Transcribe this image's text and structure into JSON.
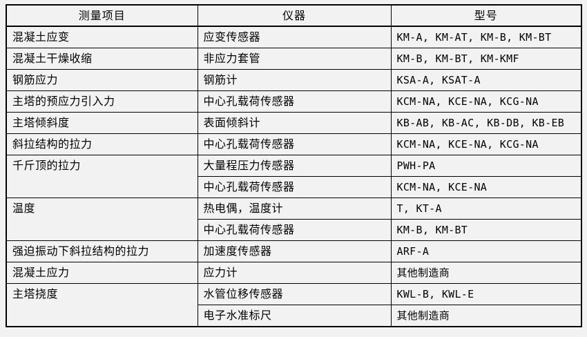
{
  "page": {
    "background_color": "#f2f2f2",
    "border_color": "#000000",
    "text_color": "#000000"
  },
  "table": {
    "headers": {
      "item": "测量项目",
      "instrument": "仪器",
      "model": "型号"
    },
    "rows": [
      {
        "item": "混凝土应变",
        "instrument": "应变传感器",
        "model": "KM-A, KM-AT, KM-B, KM-BT"
      },
      {
        "item": "混凝土干燥收缩",
        "instrument": "非应力套管",
        "model": "KM-B, KM-BT, KM-KMF"
      },
      {
        "item": "钢筋应力",
        "instrument": "钢筋计",
        "model": "KSA-A, KSAT-A"
      },
      {
        "item": "主塔的预应力引入力",
        "instrument": "中心孔载荷传感器",
        "model": "KCM-NA, KCE-NA, KCG-NA"
      },
      {
        "item": "主塔倾斜度",
        "instrument": "表面倾斜计",
        "model": "KB-AB, KB-AC, KB-DB, KB-EB"
      },
      {
        "item": "斜拉结构的拉力",
        "instrument": "中心孔载荷传感器",
        "model": "KCM-NA, KCE-NA, KCG-NA"
      },
      {
        "item": "千斤顶的拉力",
        "item_rowspan": 2,
        "instrument": "大量程压力传感器",
        "model": "PWH-PA"
      },
      {
        "instrument": "中心孔载荷传感器",
        "model": "KCM-NA, KCE-NA"
      },
      {
        "item": "温度",
        "item_rowspan": 2,
        "instrument": "热电偶，温度计",
        "model": "T, KT-A"
      },
      {
        "instrument": "中心孔载荷传感器",
        "model": "KM-B, KM-BT"
      },
      {
        "item": "强迫振动下斜拉结构的拉力",
        "instrument": "加速度传感器",
        "model": "ARF-A"
      },
      {
        "item": "混凝土应力",
        "instrument": "应力计",
        "model": "其他制造商"
      },
      {
        "item": "主塔挠度",
        "item_rowspan": 2,
        "instrument": "水管位移传感器",
        "model": "KWL-B, KWL-E"
      },
      {
        "instrument": "电子水准标尺",
        "model": "其他制造商"
      }
    ]
  }
}
